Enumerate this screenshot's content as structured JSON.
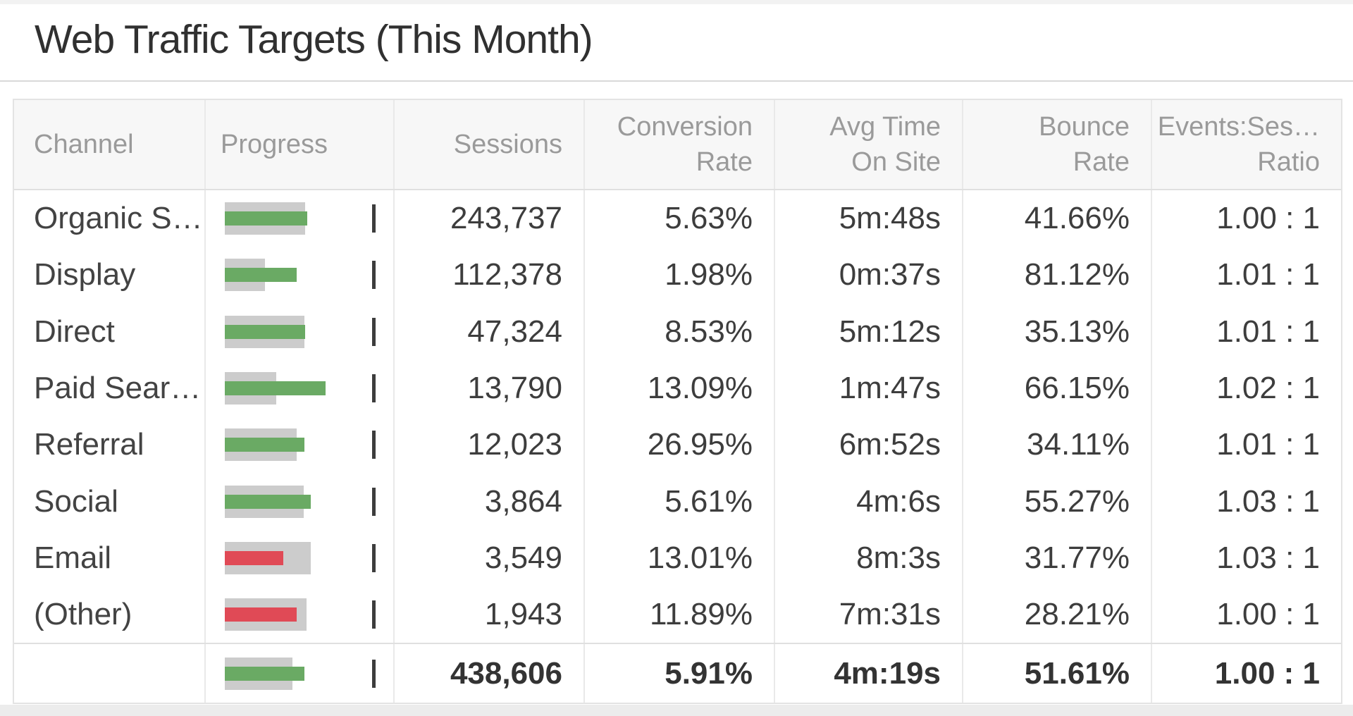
{
  "title": "Web Traffic Targets (This Month)",
  "colors": {
    "actual_above": "#6aaa64",
    "actual_below": "#e04a56",
    "target_bar": "#cccccc",
    "marker": "#3d3d3d",
    "header_text": "#9a9a9a",
    "value_text": "#3d3d3d",
    "border": "#e0e0e0",
    "border_light": "#e9e9e9",
    "header_bg": "#f7f7f7"
  },
  "chart_data": {
    "type": "table",
    "title": "Web Traffic Targets (This Month)",
    "progress_axis": {
      "min": 0,
      "max": 1,
      "marker_at": 1,
      "note": "bullet chart: gray bar = target, colored bar = actual, widths relative to marker"
    },
    "columns": [
      {
        "id": "channel",
        "label_lines": [
          "Channel"
        ],
        "align": "left"
      },
      {
        "id": "progress",
        "label_lines": [
          "Progress"
        ],
        "align": "left"
      },
      {
        "id": "sessions",
        "label_lines": [
          "Sessions"
        ],
        "align": "right"
      },
      {
        "id": "conversion_rate",
        "label_lines": [
          "Conversion",
          "Rate"
        ],
        "align": "right"
      },
      {
        "id": "avg_time_on_site",
        "label_lines": [
          "Avg Time",
          "On Site"
        ],
        "align": "right"
      },
      {
        "id": "bounce_rate",
        "label_lines": [
          "Bounce",
          "Rate"
        ],
        "align": "right"
      },
      {
        "id": "events_sessions_ratio",
        "label_lines": [
          "Events:Ses…",
          "Ratio"
        ],
        "align": "right"
      }
    ],
    "rows": [
      {
        "channel": "Organic S…",
        "sessions": "243,737",
        "conversion_rate": "5.63%",
        "avg_time_on_site": "5m:48s",
        "bounce_rate": "41.66%",
        "events_sessions_ratio": "1.00 : 1",
        "progress": {
          "target_pct": 54.5,
          "actual_pct": 56.0,
          "status": "above"
        }
      },
      {
        "channel": "Display",
        "sessions": "112,378",
        "conversion_rate": "1.98%",
        "avg_time_on_site": "0m:37s",
        "bounce_rate": "81.12%",
        "events_sessions_ratio": "1.01 : 1",
        "progress": {
          "target_pct": 27.3,
          "actual_pct": 48.8,
          "status": "above"
        }
      },
      {
        "channel": "Direct",
        "sessions": "47,324",
        "conversion_rate": "8.53%",
        "avg_time_on_site": "5m:12s",
        "bounce_rate": "35.13%",
        "events_sessions_ratio": "1.01 : 1",
        "progress": {
          "target_pct": 54.1,
          "actual_pct": 54.5,
          "status": "above"
        }
      },
      {
        "channel": "Paid Sear…",
        "sessions": "13,790",
        "conversion_rate": "13.09%",
        "avg_time_on_site": "1m:47s",
        "bounce_rate": "66.15%",
        "events_sessions_ratio": "1.02 : 1",
        "progress": {
          "target_pct": 34.9,
          "actual_pct": 68.4,
          "status": "above"
        }
      },
      {
        "channel": "Referral",
        "sessions": "12,023",
        "conversion_rate": "26.95%",
        "avg_time_on_site": "6m:52s",
        "bounce_rate": "34.11%",
        "events_sessions_ratio": "1.01 : 1",
        "progress": {
          "target_pct": 48.8,
          "actual_pct": 54.1,
          "status": "above"
        }
      },
      {
        "channel": "Social",
        "sessions": "3,864",
        "conversion_rate": "5.61%",
        "avg_time_on_site": "4m:6s",
        "bounce_rate": "55.27%",
        "events_sessions_ratio": "1.03 : 1",
        "progress": {
          "target_pct": 53.6,
          "actual_pct": 58.4,
          "status": "above"
        }
      },
      {
        "channel": "Email",
        "sessions": "3,549",
        "conversion_rate": "13.01%",
        "avg_time_on_site": "8m:3s",
        "bounce_rate": "31.77%",
        "events_sessions_ratio": "1.03 : 1",
        "progress": {
          "target_pct": 58.4,
          "actual_pct": 39.7,
          "status": "below"
        }
      },
      {
        "channel": "(Other)",
        "sessions": "1,943",
        "conversion_rate": "11.89%",
        "avg_time_on_site": "7m:31s",
        "bounce_rate": "28.21%",
        "events_sessions_ratio": "1.00 : 1",
        "progress": {
          "target_pct": 55.5,
          "actual_pct": 48.8,
          "status": "below"
        }
      }
    ],
    "total_row": {
      "channel": "",
      "sessions": "438,606",
      "conversion_rate": "5.91%",
      "avg_time_on_site": "4m:19s",
      "bounce_rate": "51.61%",
      "events_sessions_ratio": "1.00 : 1",
      "progress": {
        "target_pct": 45.9,
        "actual_pct": 54.1,
        "status": "above"
      }
    }
  }
}
